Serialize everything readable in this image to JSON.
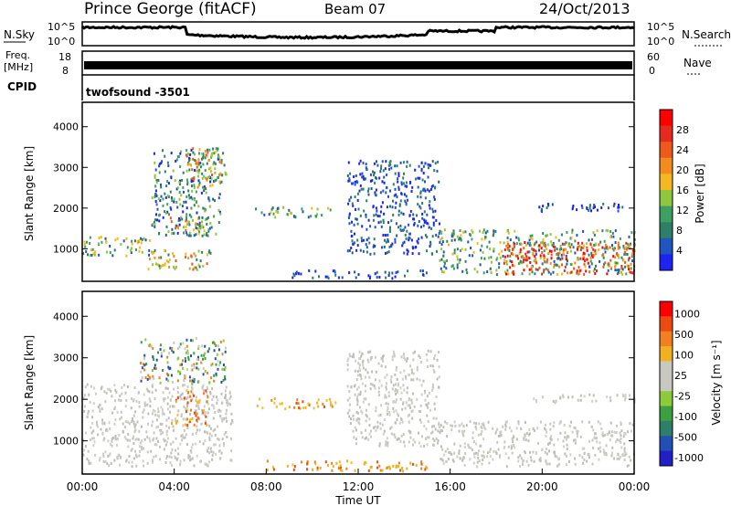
{
  "header": {
    "station": "Prince George (fitACF)",
    "beam": "Beam 07",
    "date": "24/Oct/2013"
  },
  "panels": {
    "noise": {
      "left_label": "N.Sky",
      "right_label": "N.Search",
      "left_ticks": [
        "10^5",
        "10^0"
      ],
      "right_ticks": [
        "10^5",
        "10^0"
      ],
      "line_color": "#000000"
    },
    "freq": {
      "left_label_1": "Freq.",
      "left_label_2": "[MHz]",
      "right_label": "Nave",
      "left_ticks": [
        "18",
        "8"
      ],
      "right_ticks": [
        "60",
        "0"
      ]
    },
    "cpid": {
      "label": "CPID",
      "value": "twofsound  -3501"
    }
  },
  "chart_data": [
    {
      "type": "heatmap",
      "name": "power",
      "ylabel": "Slant Range [km]",
      "yticks": [
        1000,
        2000,
        3000,
        4000
      ],
      "ylim": [
        200,
        4600
      ],
      "colorbar_label": "Power [dB]",
      "colorbar_ticks": [
        4,
        8,
        12,
        16,
        20,
        24,
        28
      ],
      "colorbar_colors": [
        "#1d23f0",
        "#2055c0",
        "#2f7f68",
        "#3da060",
        "#8dc63f",
        "#f4b820",
        "#f28c1e",
        "#ee5a1c",
        "#e62a1f",
        "#ff0000"
      ],
      "regions": [
        {
          "t0": 0.0,
          "t1": 3.0,
          "r0": 850,
          "r1": 1350,
          "level": "mid"
        },
        {
          "t0": 3.0,
          "t1": 6.0,
          "r0": 1350,
          "r1": 3500,
          "level": "mixed"
        },
        {
          "t0": 3.8,
          "t1": 5.5,
          "r0": 1400,
          "r1": 1800,
          "level": "high"
        },
        {
          "t0": 2.8,
          "t1": 5.6,
          "r0": 500,
          "r1": 1000,
          "level": "high"
        },
        {
          "t0": 4.5,
          "t1": 6.3,
          "r0": 2500,
          "r1": 3500,
          "level": "high"
        },
        {
          "t0": 11.5,
          "t1": 15.5,
          "r0": 900,
          "r1": 3200,
          "level": "low"
        },
        {
          "t0": 9.0,
          "t1": 15.0,
          "r0": 300,
          "r1": 500,
          "level": "low"
        },
        {
          "t0": 7.5,
          "t1": 11.0,
          "r0": 1800,
          "r1": 2050,
          "level": "mid"
        },
        {
          "t0": 15.5,
          "t1": 24.0,
          "r0": 400,
          "r1": 1500,
          "level": "mid"
        },
        {
          "t0": 18.3,
          "t1": 24.0,
          "r0": 400,
          "r1": 1200,
          "level": "max"
        },
        {
          "t0": 19.5,
          "t1": 24.0,
          "r0": 1950,
          "r1": 2150,
          "level": "low"
        }
      ]
    },
    {
      "type": "heatmap",
      "name": "velocity",
      "ylabel": "Slant Range [km]",
      "yticks": [
        1000,
        2000,
        3000,
        4000
      ],
      "ylim": [
        200,
        4600
      ],
      "colorbar_label": "Velocity [m s⁻¹]",
      "colorbar_ticks": [
        1000,
        500,
        100,
        25,
        -25,
        -100,
        -500,
        -1000
      ],
      "colorbar_colors": [
        "#2020c8",
        "#2050b4",
        "#2f7f68",
        "#3da040",
        "#8ccc3c",
        "#c8c8c0",
        "#c8c8c0",
        "#f0b020",
        "#f08020",
        "#ec4a10",
        "#ff0000"
      ],
      "regions": [
        {
          "t0": 0.0,
          "t1": 6.5,
          "r0": 400,
          "r1": 2400,
          "level": "ground"
        },
        {
          "t0": 2.5,
          "t1": 6.2,
          "r0": 2400,
          "r1": 3500,
          "level": "mixed"
        },
        {
          "t0": 3.8,
          "t1": 5.5,
          "r0": 1400,
          "r1": 1800,
          "level": "orange"
        },
        {
          "t0": 4.0,
          "t1": 5.6,
          "r0": 1950,
          "r1": 2250,
          "level": "orange"
        },
        {
          "t0": 11.5,
          "t1": 15.5,
          "r0": 900,
          "r1": 3200,
          "level": "ground"
        },
        {
          "t0": 8.0,
          "t1": 15.0,
          "r0": 300,
          "r1": 550,
          "level": "orange"
        },
        {
          "t0": 7.5,
          "t1": 11.0,
          "r0": 1800,
          "r1": 2050,
          "level": "orange"
        },
        {
          "t0": 15.5,
          "t1": 24.0,
          "r0": 400,
          "r1": 1500,
          "level": "ground"
        },
        {
          "t0": 19.5,
          "t1": 24.0,
          "r0": 1950,
          "r1": 2150,
          "level": "ground"
        }
      ]
    }
  ],
  "time_axis": {
    "label": "Time UT",
    "ticks": [
      "00:00",
      "04:00",
      "08:00",
      "12:00",
      "16:00",
      "20:00",
      "00:00"
    ],
    "range_hours": [
      0,
      24
    ]
  }
}
